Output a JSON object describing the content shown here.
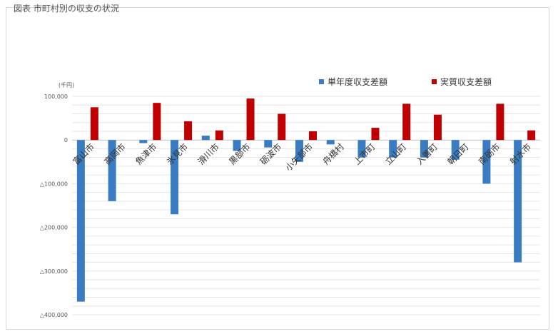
{
  "heading": "図表  市町村別の収支の状況",
  "chart_data": {
    "type": "bar",
    "unit": "(千円)",
    "categories": [
      "富山市",
      "高岡市",
      "魚津市",
      "氷見市",
      "滑川市",
      "黒部市",
      "砺波市",
      "小矢部市",
      "舟橋村",
      "上市町",
      "立山町",
      "入善町",
      "朝日町",
      "南砺市",
      "射水市"
    ],
    "series": [
      {
        "name": "単年度収支差額",
        "color": "#3a7cc2",
        "values": [
          -370000,
          -140000,
          -7000,
          -170000,
          10000,
          -25000,
          -17000,
          -50000,
          -10000,
          -40000,
          -40000,
          -40000,
          -45000,
          -100000,
          -280000
        ]
      },
      {
        "name": "実質収支差額",
        "color": "#c00000",
        "values": [
          75000,
          0,
          85000,
          43000,
          22000,
          95000,
          60000,
          20000,
          0,
          28000,
          83000,
          58000,
          0,
          83000,
          22000
        ]
      }
    ],
    "ylim": [
      -400000,
      100000
    ],
    "yticks": [
      {
        "value": 100000,
        "label": "100,000"
      },
      {
        "value": 0,
        "label": "0"
      },
      {
        "value": -100000,
        "label": "△100,000"
      },
      {
        "value": -200000,
        "label": "△200,000"
      },
      {
        "value": -300000,
        "label": "△300,000"
      },
      {
        "value": -400000,
        "label": "△400,000"
      }
    ],
    "legend_position": "top-right",
    "grid": true
  }
}
